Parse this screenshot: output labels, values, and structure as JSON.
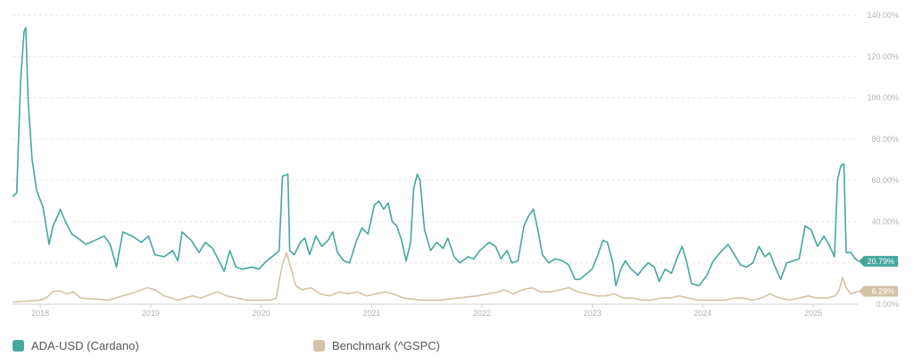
{
  "chart_data": {
    "type": "line",
    "y_unit": "%",
    "ylim": [
      0,
      140
    ],
    "y_ticks": [
      "0.00%",
      "20.00%",
      "40.00%",
      "60.00%",
      "80.00%",
      "100.00%",
      "120.00%",
      "140.00%"
    ],
    "y_tick_values": [
      0,
      20,
      40,
      60,
      80,
      100,
      120,
      140
    ],
    "x_range": [
      "2017-10-01",
      "2025-05-31"
    ],
    "x_ticks": [
      {
        "label": "2018",
        "date": "2018-01-01"
      },
      {
        "label": "2019",
        "date": "2019-01-01"
      },
      {
        "label": "2020",
        "date": "2020-01-01"
      },
      {
        "label": "2021",
        "date": "2021-01-01"
      },
      {
        "label": "2022",
        "date": "2022-01-01"
      },
      {
        "label": "2023",
        "date": "2023-01-01"
      },
      {
        "label": "2024",
        "date": "2024-01-01"
      },
      {
        "label": "2025",
        "date": "2025-01-01"
      }
    ],
    "grid": true,
    "legend_position": "bottom",
    "series": [
      {
        "name": "ADA-USD (Cardano)",
        "color": "#45a79e",
        "end_label": "20.79%",
        "points": [
          [
            "2017-10-01",
            52
          ],
          [
            "2017-10-15",
            54
          ],
          [
            "2017-10-28",
            108
          ],
          [
            "2017-11-08",
            132
          ],
          [
            "2017-11-14",
            134
          ],
          [
            "2017-11-22",
            98
          ],
          [
            "2017-12-05",
            70
          ],
          [
            "2017-12-20",
            55
          ],
          [
            "2018-01-10",
            47
          ],
          [
            "2018-01-30",
            29
          ],
          [
            "2018-02-12",
            38
          ],
          [
            "2018-02-28",
            43
          ],
          [
            "2018-03-08",
            46
          ],
          [
            "2018-03-25",
            40
          ],
          [
            "2018-04-15",
            34
          ],
          [
            "2018-05-05",
            32
          ],
          [
            "2018-06-01",
            29
          ],
          [
            "2018-07-01",
            31
          ],
          [
            "2018-08-01",
            33
          ],
          [
            "2018-08-20",
            29
          ],
          [
            "2018-09-10",
            18
          ],
          [
            "2018-10-01",
            35
          ],
          [
            "2018-11-01",
            33
          ],
          [
            "2018-12-01",
            30
          ],
          [
            "2018-12-25",
            33
          ],
          [
            "2019-01-15",
            24
          ],
          [
            "2019-02-15",
            23
          ],
          [
            "2019-03-15",
            26
          ],
          [
            "2019-04-01",
            21
          ],
          [
            "2019-04-15",
            35
          ],
          [
            "2019-05-15",
            31
          ],
          [
            "2019-06-10",
            25
          ],
          [
            "2019-07-01",
            30
          ],
          [
            "2019-07-25",
            27
          ],
          [
            "2019-08-15",
            21
          ],
          [
            "2019-09-01",
            16
          ],
          [
            "2019-09-20",
            26
          ],
          [
            "2019-10-10",
            18
          ],
          [
            "2019-11-01",
            17
          ],
          [
            "2019-12-01",
            18
          ],
          [
            "2019-12-25",
            17
          ],
          [
            "2020-01-20",
            21
          ],
          [
            "2020-02-15",
            24
          ],
          [
            "2020-03-01",
            26
          ],
          [
            "2020-03-12",
            62
          ],
          [
            "2020-03-30",
            63
          ],
          [
            "2020-04-05",
            26
          ],
          [
            "2020-04-20",
            24
          ],
          [
            "2020-05-10",
            30
          ],
          [
            "2020-05-25",
            32
          ],
          [
            "2020-06-10",
            24
          ],
          [
            "2020-07-01",
            33
          ],
          [
            "2020-07-20",
            28
          ],
          [
            "2020-08-10",
            31
          ],
          [
            "2020-08-25",
            35
          ],
          [
            "2020-09-10",
            25
          ],
          [
            "2020-10-01",
            21
          ],
          [
            "2020-10-20",
            20
          ],
          [
            "2020-11-10",
            30
          ],
          [
            "2020-11-30",
            37
          ],
          [
            "2020-12-20",
            34
          ],
          [
            "2021-01-10",
            48
          ],
          [
            "2021-01-25",
            50
          ],
          [
            "2021-02-10",
            46
          ],
          [
            "2021-02-25",
            49
          ],
          [
            "2021-03-10",
            40
          ],
          [
            "2021-03-25",
            38
          ],
          [
            "2021-04-10",
            31
          ],
          [
            "2021-04-25",
            21
          ],
          [
            "2021-05-10",
            30
          ],
          [
            "2021-05-20",
            56
          ],
          [
            "2021-06-01",
            63
          ],
          [
            "2021-06-10",
            60
          ],
          [
            "2021-06-25",
            36
          ],
          [
            "2021-07-15",
            26
          ],
          [
            "2021-08-05",
            30
          ],
          [
            "2021-08-25",
            27
          ],
          [
            "2021-09-10",
            32
          ],
          [
            "2021-10-01",
            23
          ],
          [
            "2021-10-20",
            20
          ],
          [
            "2021-11-15",
            23
          ],
          [
            "2021-12-05",
            22
          ],
          [
            "2021-12-25",
            26
          ],
          [
            "2022-01-25",
            30
          ],
          [
            "2022-02-15",
            28
          ],
          [
            "2022-03-05",
            22
          ],
          [
            "2022-03-25",
            26
          ],
          [
            "2022-04-10",
            20
          ],
          [
            "2022-04-30",
            21
          ],
          [
            "2022-05-20",
            38
          ],
          [
            "2022-06-05",
            43
          ],
          [
            "2022-06-20",
            46
          ],
          [
            "2022-07-05",
            36
          ],
          [
            "2022-07-20",
            24
          ],
          [
            "2022-08-10",
            20
          ],
          [
            "2022-09-01",
            22
          ],
          [
            "2022-09-25",
            21
          ],
          [
            "2022-10-15",
            19
          ],
          [
            "2022-11-05",
            12
          ],
          [
            "2022-11-20",
            12
          ],
          [
            "2022-12-15",
            15
          ],
          [
            "2022-12-31",
            17
          ],
          [
            "2023-01-20",
            24
          ],
          [
            "2023-02-05",
            31
          ],
          [
            "2023-02-20",
            30
          ],
          [
            "2023-03-10",
            20
          ],
          [
            "2023-03-20",
            9
          ],
          [
            "2023-04-05",
            17
          ],
          [
            "2023-04-20",
            21
          ],
          [
            "2023-05-10",
            17
          ],
          [
            "2023-06-01",
            14
          ],
          [
            "2023-06-15",
            17
          ],
          [
            "2023-07-05",
            20
          ],
          [
            "2023-07-25",
            18
          ],
          [
            "2023-08-10",
            11
          ],
          [
            "2023-08-30",
            17
          ],
          [
            "2023-09-20",
            15
          ],
          [
            "2023-10-10",
            23
          ],
          [
            "2023-10-25",
            28
          ],
          [
            "2023-11-10",
            20
          ],
          [
            "2023-11-25",
            10
          ],
          [
            "2023-12-20",
            9
          ],
          [
            "2024-01-15",
            14
          ],
          [
            "2024-02-05",
            21
          ],
          [
            "2024-03-05",
            26
          ],
          [
            "2024-03-25",
            29
          ],
          [
            "2024-04-15",
            24
          ],
          [
            "2024-05-05",
            19
          ],
          [
            "2024-05-25",
            18
          ],
          [
            "2024-06-15",
            20
          ],
          [
            "2024-07-05",
            28
          ],
          [
            "2024-07-25",
            23
          ],
          [
            "2024-08-10",
            25
          ],
          [
            "2024-08-25",
            19
          ],
          [
            "2024-09-15",
            12
          ],
          [
            "2024-10-05",
            20
          ],
          [
            "2024-10-25",
            21
          ],
          [
            "2024-11-15",
            22
          ],
          [
            "2024-12-05",
            38
          ],
          [
            "2024-12-25",
            36
          ],
          [
            "2025-01-15",
            28
          ],
          [
            "2025-02-05",
            33
          ],
          [
            "2025-02-25",
            28
          ],
          [
            "2025-03-12",
            23
          ],
          [
            "2025-03-22",
            60
          ],
          [
            "2025-04-02",
            67
          ],
          [
            "2025-04-12",
            68
          ],
          [
            "2025-04-20",
            25
          ],
          [
            "2025-05-05",
            25
          ],
          [
            "2025-05-20",
            22
          ],
          [
            "2025-05-31",
            20.79
          ]
        ]
      },
      {
        "name": "Benchmark (^GSPC)",
        "color": "#d3c3a6",
        "end_label": "6.29%",
        "points": [
          [
            "2017-10-01",
            1
          ],
          [
            "2017-11-15",
            1.5
          ],
          [
            "2017-12-31",
            2
          ],
          [
            "2018-01-20",
            3
          ],
          [
            "2018-02-10",
            6
          ],
          [
            "2018-03-05",
            6.5
          ],
          [
            "2018-04-01",
            5
          ],
          [
            "2018-04-20",
            6
          ],
          [
            "2018-05-15",
            3
          ],
          [
            "2018-07-01",
            2.5
          ],
          [
            "2018-08-15",
            2
          ],
          [
            "2018-10-01",
            4
          ],
          [
            "2018-11-15",
            6
          ],
          [
            "2018-12-20",
            8
          ],
          [
            "2019-01-15",
            7
          ],
          [
            "2019-02-15",
            4
          ],
          [
            "2019-04-01",
            2
          ],
          [
            "2019-05-20",
            4
          ],
          [
            "2019-06-15",
            3
          ],
          [
            "2019-08-10",
            6
          ],
          [
            "2019-09-10",
            4
          ],
          [
            "2019-10-15",
            3
          ],
          [
            "2019-11-15",
            2
          ],
          [
            "2019-12-31",
            2
          ],
          [
            "2020-02-01",
            2
          ],
          [
            "2020-02-20",
            3
          ],
          [
            "2020-03-10",
            18
          ],
          [
            "2020-03-25",
            25
          ],
          [
            "2020-04-10",
            17
          ],
          [
            "2020-04-25",
            9
          ],
          [
            "2020-05-15",
            7
          ],
          [
            "2020-06-15",
            8
          ],
          [
            "2020-07-15",
            5
          ],
          [
            "2020-08-15",
            4
          ],
          [
            "2020-09-15",
            6
          ],
          [
            "2020-10-15",
            5
          ],
          [
            "2020-11-15",
            6
          ],
          [
            "2020-12-15",
            4
          ],
          [
            "2021-01-15",
            5
          ],
          [
            "2021-02-15",
            6
          ],
          [
            "2021-03-15",
            5
          ],
          [
            "2021-04-15",
            3
          ],
          [
            "2021-06-15",
            2
          ],
          [
            "2021-08-15",
            2
          ],
          [
            "2021-10-15",
            3
          ],
          [
            "2021-12-15",
            4
          ],
          [
            "2022-01-20",
            5
          ],
          [
            "2022-02-25",
            6
          ],
          [
            "2022-03-15",
            7
          ],
          [
            "2022-04-15",
            5
          ],
          [
            "2022-05-15",
            7
          ],
          [
            "2022-06-15",
            8
          ],
          [
            "2022-07-15",
            6
          ],
          [
            "2022-08-15",
            6
          ],
          [
            "2022-09-15",
            7
          ],
          [
            "2022-10-15",
            8
          ],
          [
            "2022-11-15",
            6
          ],
          [
            "2022-12-15",
            5
          ],
          [
            "2023-01-15",
            4
          ],
          [
            "2023-02-15",
            4
          ],
          [
            "2023-03-15",
            5
          ],
          [
            "2023-04-15",
            3
          ],
          [
            "2023-05-15",
            3
          ],
          [
            "2023-06-15",
            2
          ],
          [
            "2023-07-15",
            2
          ],
          [
            "2023-08-15",
            3
          ],
          [
            "2023-09-15",
            3
          ],
          [
            "2023-10-15",
            4
          ],
          [
            "2023-11-15",
            3
          ],
          [
            "2023-12-15",
            2
          ],
          [
            "2024-01-15",
            2
          ],
          [
            "2024-02-15",
            2
          ],
          [
            "2024-03-15",
            2
          ],
          [
            "2024-04-15",
            3
          ],
          [
            "2024-05-15",
            3
          ],
          [
            "2024-06-15",
            2
          ],
          [
            "2024-07-15",
            3
          ],
          [
            "2024-08-10",
            5
          ],
          [
            "2024-08-25",
            4
          ],
          [
            "2024-09-15",
            3
          ],
          [
            "2024-10-15",
            2
          ],
          [
            "2024-11-15",
            3
          ],
          [
            "2024-12-15",
            4
          ],
          [
            "2025-01-15",
            3
          ],
          [
            "2025-02-15",
            3
          ],
          [
            "2025-03-15",
            4
          ],
          [
            "2025-03-28",
            7
          ],
          [
            "2025-04-08",
            13
          ],
          [
            "2025-04-20",
            8
          ],
          [
            "2025-05-05",
            5
          ],
          [
            "2025-05-31",
            6.29
          ]
        ]
      }
    ]
  }
}
